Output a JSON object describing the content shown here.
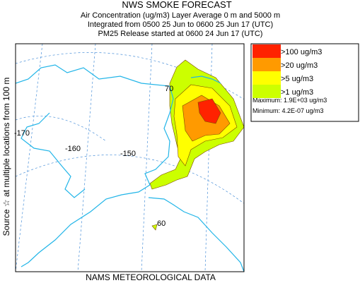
{
  "header": {
    "title": "NWS SMOKE FORECAST",
    "lines": [
      "Air Concentration (ug/m3) Layer Average    0 m and  5000 m",
      "Integrated from 0500 25 Jun to 0600 25 Jun 17 (UTC)",
      "PM25 Release started at 0600 24 Jun 17 (UTC)"
    ]
  },
  "side_label": "Source ☆   at multiple locations   from   100 m",
  "legend": {
    "items": [
      {
        "label": ">100 ug/m3",
        "color": "#ff2200"
      },
      {
        "label": ">20 ug/m3",
        "color": "#ff9a00"
      },
      {
        "label": ">5 ug/m3",
        "color": "#ffff00"
      },
      {
        "label": ">1 ug/m3",
        "color": "#ccff00"
      }
    ],
    "maximum": "Maximum: 1.9E+03 ug/m3",
    "minimum": "Minimum: 4.2E-07 ug/m3"
  },
  "map": {
    "grid_labels": [
      "-170",
      "-160",
      "-150",
      "70",
      "60"
    ]
  },
  "footer": "NAMS METEOROLOGICAL DATA"
}
